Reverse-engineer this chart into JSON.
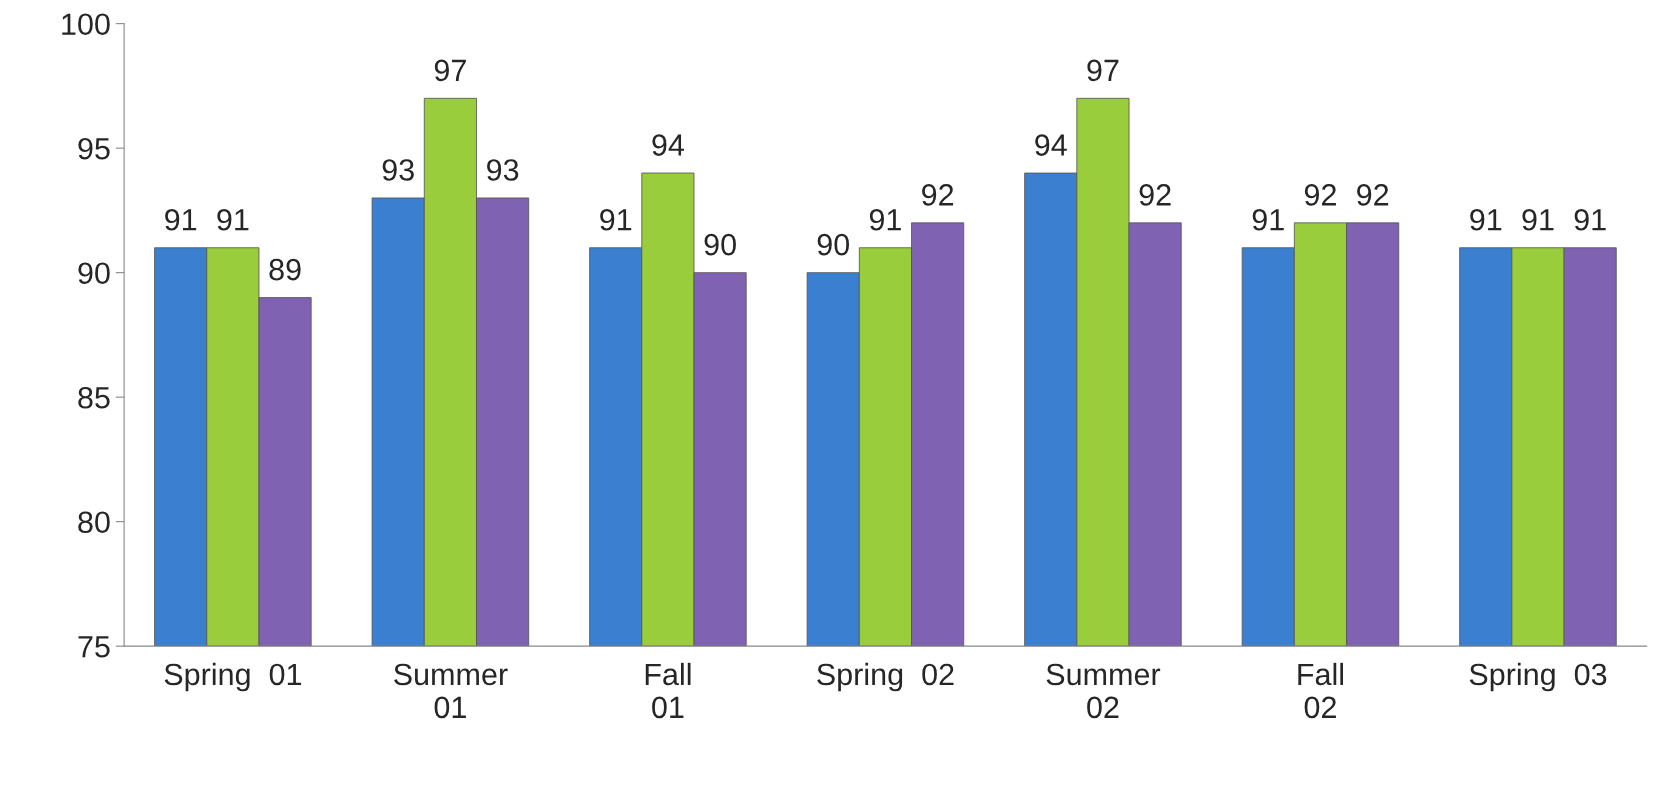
{
  "chart_data": {
    "type": "bar",
    "categories": [
      "Spring  01",
      "Summer\n01",
      "Fall\n01",
      "Spring  02",
      "Summer\n02",
      "Fall\n02",
      "Spring  03"
    ],
    "series": [
      {
        "color": "#3b7fd0",
        "values": [
          91,
          93,
          91,
          90,
          94,
          91,
          91
        ]
      },
      {
        "color": "#9acd3c",
        "values": [
          91,
          97,
          94,
          91,
          97,
          92,
          91
        ]
      },
      {
        "color": "#8062b2",
        "values": [
          89,
          93,
          90,
          92,
          92,
          92,
          91
        ]
      }
    ],
    "ylim": [
      75,
      100
    ],
    "yticks": [
      75,
      80,
      85,
      90,
      95,
      100
    ],
    "data_labels": true,
    "grid": false
  }
}
